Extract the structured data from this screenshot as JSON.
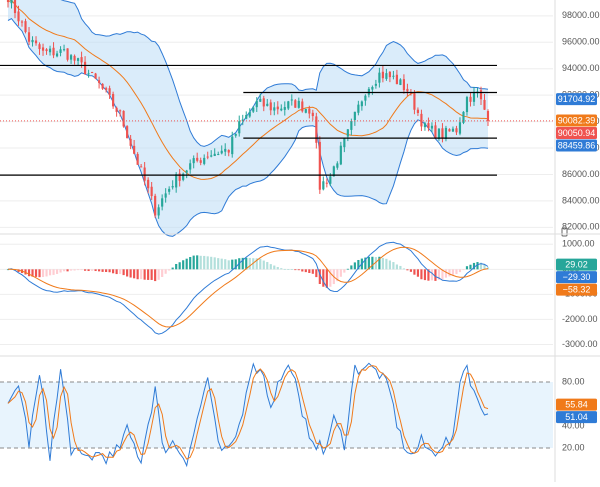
{
  "colors": {
    "up": "#26a69a",
    "down": "#ef5350",
    "band_line": "#2f7bd6",
    "band_fill": "#bcdcf5",
    "ema": "#f07a1a",
    "macd": "#2f7bd6",
    "signal": "#f07a1a",
    "hist_up": "#26a69a",
    "hist_up_fading": "#b2dfdb",
    "hist_down": "#ef5350",
    "hist_down_fading": "#ffcdd2",
    "stoch_k": "#2f7bd6",
    "stoch_d": "#f07a1a",
    "stoch_band": "#d9ecfb",
    "level_line": "#000000",
    "current_price_line": "#ef5350",
    "grid": "#eeeeee",
    "separator": "#dddddd"
  },
  "chart_data": [
    {
      "type": "candlestick",
      "panel": "price",
      "yticks": [
        "98000.00",
        "96000.00",
        "94000.00",
        "92000.00",
        "90000.00",
        "88000.00",
        "86000.00",
        "84000.00",
        "82000.00"
      ],
      "ylim": [
        81800,
        99200
      ],
      "bollinger_bands": true,
      "moving_average": true,
      "horizontal_levels": [
        {
          "price": 94250,
          "from": 0.0,
          "to": 1.0
        },
        {
          "price": 92200,
          "from": 0.44,
          "to": 1.0
        },
        {
          "price": 88750,
          "from": 0.44,
          "to": 1.0
        },
        {
          "price": 85950,
          "from": 0.0,
          "to": 1.0
        }
      ],
      "price_badges": [
        {
          "label": "91704.92",
          "value": 91704.92,
          "color": "#2f7bd6"
        },
        {
          "label": "90082.39",
          "value": 90082.39,
          "color": "#f07a1a"
        },
        {
          "label": "90050.94",
          "value": 90050.94,
          "color": "#ef5350"
        },
        {
          "label": "88459.86",
          "value": 88459.86,
          "color": "#2f7bd6"
        }
      ],
      "current_price": 90050.94,
      "segments": [
        [
          0,
          99500
        ],
        [
          6,
          96200
        ],
        [
          10,
          95200
        ],
        [
          16,
          95300
        ],
        [
          21,
          94200
        ],
        [
          26,
          92800
        ],
        [
          32,
          90500
        ],
        [
          38,
          86200
        ],
        [
          42,
          83300
        ],
        [
          47,
          85400
        ],
        [
          52,
          86700
        ],
        [
          57,
          87500
        ],
        [
          63,
          87900
        ],
        [
          66,
          89700
        ],
        [
          71,
          91400
        ],
        [
          76,
          91000
        ],
        [
          82,
          91400
        ],
        [
          87,
          90800
        ],
        [
          89,
          85100
        ],
        [
          92,
          85900
        ],
        [
          98,
          89700
        ],
        [
          102,
          92400
        ],
        [
          106,
          93600
        ],
        [
          110,
          93300
        ],
        [
          114,
          92400
        ],
        [
          119,
          89500
        ],
        [
          124,
          89000
        ],
        [
          128,
          89400
        ],
        [
          131,
          91800
        ],
        [
          134,
          92100
        ],
        [
          137,
          90300
        ]
      ],
      "candle_count": 138
    },
    {
      "type": "macd",
      "panel": "macd",
      "yticks": [
        "1000.00",
        "0.00",
        "-1000.00",
        "-2000.00",
        "-3000.00"
      ],
      "ylim": [
        -3300,
        1250
      ],
      "value_badges": [
        {
          "label": "29.02",
          "value": 29.02,
          "color": "#26a69a"
        },
        {
          "label": "−29.30",
          "value": -29.3,
          "color": "#2f7bd6"
        },
        {
          "label": "−58.32",
          "value": -58.32,
          "color": "#f07a1a"
        }
      ]
    },
    {
      "type": "stochastic",
      "panel": "stochastic",
      "yticks": [
        "80.00",
        "40.00",
        "20.00"
      ],
      "ylim": [
        0,
        100
      ],
      "band": [
        20,
        80
      ],
      "value_badges": [
        {
          "label": "55.84",
          "value": 55.84,
          "color": "#f07a1a"
        },
        {
          "label": "51.04",
          "value": 51.04,
          "color": "#2f7bd6"
        }
      ],
      "k_profile": [
        [
          0,
          55
        ],
        [
          3,
          80
        ],
        [
          6,
          25
        ],
        [
          9,
          85
        ],
        [
          12,
          15
        ],
        [
          15,
          90
        ],
        [
          18,
          20
        ],
        [
          21,
          10
        ],
        [
          26,
          15
        ],
        [
          30,
          10
        ],
        [
          34,
          35
        ],
        [
          38,
          10
        ],
        [
          42,
          75
        ],
        [
          44,
          20
        ],
        [
          47,
          25
        ],
        [
          51,
          10
        ],
        [
          54,
          45
        ],
        [
          57,
          85
        ],
        [
          60,
          20
        ],
        [
          63,
          15
        ],
        [
          66,
          40
        ],
        [
          69,
          90
        ],
        [
          72,
          95
        ],
        [
          75,
          60
        ],
        [
          78,
          85
        ],
        [
          81,
          95
        ],
        [
          84,
          45
        ],
        [
          87,
          30
        ],
        [
          90,
          15
        ],
        [
          93,
          45
        ],
        [
          96,
          25
        ],
        [
          99,
          92
        ],
        [
          102,
          95
        ],
        [
          106,
          88
        ],
        [
          109,
          70
        ],
        [
          112,
          30
        ],
        [
          115,
          12
        ],
        [
          118,
          25
        ],
        [
          121,
          15
        ],
        [
          124,
          25
        ],
        [
          127,
          25
        ],
        [
          129,
          85
        ],
        [
          131,
          95
        ],
        [
          134,
          60
        ],
        [
          137,
          51
        ]
      ]
    }
  ]
}
